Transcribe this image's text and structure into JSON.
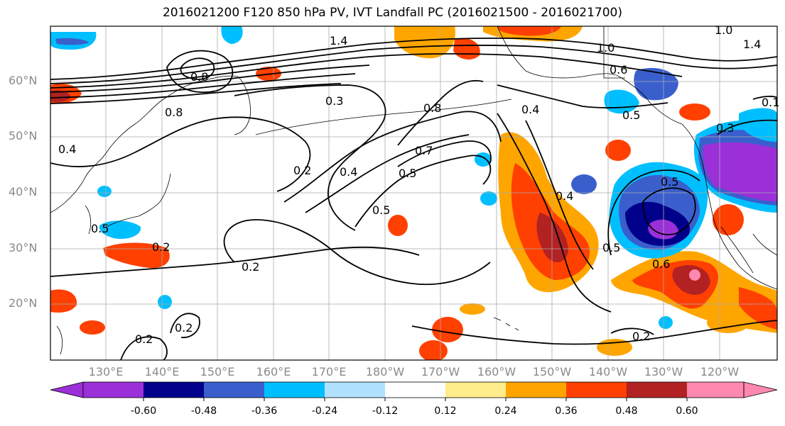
{
  "title": "2016021200 F120 850 hPa PV, IVT Landfall PC (2016021500 - 2016021700)",
  "lat_labels": [
    "60°N",
    "50°N",
    "40°N",
    "30°N",
    "20°N"
  ],
  "lon_labels": [
    "130°E",
    "140°E",
    "150°E",
    "160°E",
    "170°E",
    "180°W",
    "170°W",
    "160°W",
    "150°W",
    "140°W",
    "130°W",
    "120°W"
  ],
  "colorbar": {
    "colors": [
      "#9b30d9",
      "#00008b",
      "#3a5fcd",
      "#00bfff",
      "#b0e2ff",
      "#ffffff",
      "#ffec8b",
      "#ffa500",
      "#ff4000",
      "#b22222",
      "#ff88b0"
    ],
    "tick_labels": [
      "-0.60",
      "-0.48",
      "-0.36",
      "-0.24",
      "-0.12",
      "0.12",
      "0.24",
      "0.36",
      "0.48",
      "0.60"
    ]
  },
  "contour_labels": [
    "1.4",
    "1.0",
    "1.4",
    "1.0",
    "0.6",
    "0.8",
    "0.8",
    "0.3",
    "0.8",
    "0.4",
    "0.4",
    "0.7",
    "0.2",
    "0.4",
    "0.5",
    "0.5",
    "0.5",
    "0.3",
    "0.5",
    "0.4",
    "0.5",
    "0.6",
    "0.2",
    "0.2",
    "0.2",
    "0.2",
    "0.2",
    "0.5",
    "0.1"
  ]
}
